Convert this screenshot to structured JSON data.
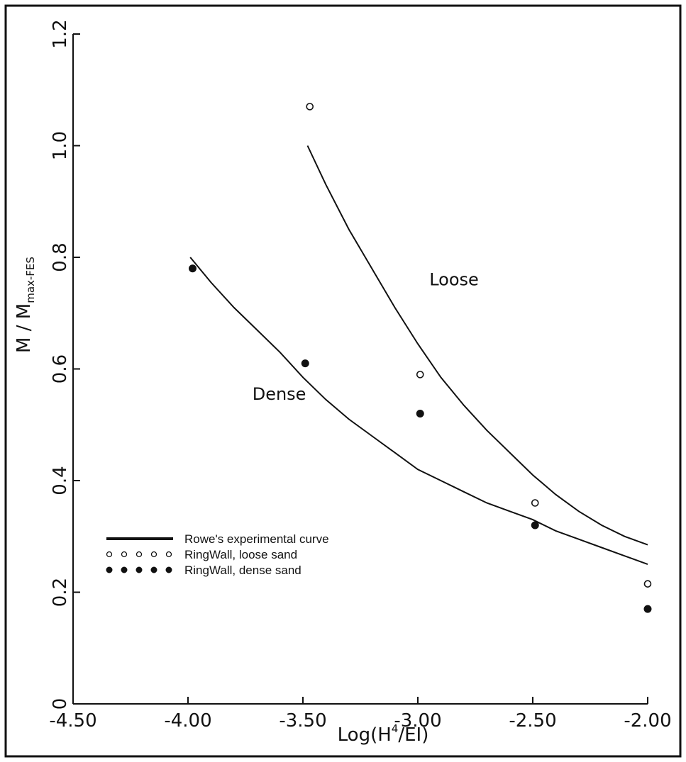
{
  "chart_data": {
    "type": "scatter",
    "title": "",
    "xlabel": "Log(H⁴/EI)",
    "ylabel": "M / Mmax-FES",
    "ylabel_parts": {
      "main": "M  /  M",
      "sub": "max-FES"
    },
    "xlabel_parts": {
      "pre": "Log(H",
      "sup": "4",
      "post": "/EI)"
    },
    "xlim": [
      -4.5,
      -2.0
    ],
    "ylim": [
      0,
      1.2
    ],
    "x_ticks": [
      -4.5,
      -4.0,
      -3.5,
      -3.0,
      -2.5,
      -2.0
    ],
    "x_tick_labels": [
      "-4.50",
      "-4.00",
      "-3.50",
      "-3.00",
      "-2.50",
      "-2.00"
    ],
    "y_ticks": [
      0,
      0.2,
      0.4,
      0.6,
      0.8,
      1.0,
      1.2
    ],
    "y_tick_labels": [
      "0",
      "0.2",
      "0.4",
      "0.6",
      "0.8",
      "1.0",
      "1.2"
    ],
    "grid": false,
    "legend_position": "lower-left",
    "annotations": [
      {
        "text": "Loose",
        "x": -2.95,
        "y": 0.75
      },
      {
        "text": "Dense",
        "x": -3.72,
        "y": 0.545
      }
    ],
    "series": [
      {
        "name": "Rowe's experimental curve",
        "kind": "curve",
        "marker": "line",
        "group": "Loose",
        "x": [
          -3.48,
          -3.4,
          -3.3,
          -3.2,
          -3.1,
          -3.0,
          -2.9,
          -2.8,
          -2.7,
          -2.6,
          -2.5,
          -2.4,
          -2.3,
          -2.2,
          -2.1,
          -2.0
        ],
        "y": [
          1.0,
          0.93,
          0.85,
          0.78,
          0.71,
          0.645,
          0.585,
          0.535,
          0.49,
          0.45,
          0.41,
          0.375,
          0.345,
          0.32,
          0.3,
          0.285
        ]
      },
      {
        "name": "Rowe's experimental curve",
        "kind": "curve",
        "marker": "line",
        "group": "Dense",
        "x": [
          -3.99,
          -3.9,
          -3.8,
          -3.7,
          -3.6,
          -3.5,
          -3.4,
          -3.3,
          -3.2,
          -3.1,
          -3.0,
          -2.9,
          -2.8,
          -2.7,
          -2.6,
          -2.5,
          -2.4,
          -2.3,
          -2.2,
          -2.1,
          -2.0
        ],
        "y": [
          0.8,
          0.755,
          0.71,
          0.67,
          0.63,
          0.585,
          0.545,
          0.51,
          0.48,
          0.45,
          0.42,
          0.4,
          0.38,
          0.36,
          0.345,
          0.33,
          0.31,
          0.295,
          0.28,
          0.265,
          0.25
        ]
      },
      {
        "name": "RingWall, loose sand",
        "kind": "points",
        "marker": "open-circle",
        "x": [
          -3.47,
          -2.99,
          -2.49,
          -2.0
        ],
        "y": [
          1.07,
          0.59,
          0.36,
          0.215
        ]
      },
      {
        "name": "RingWall, dense sand",
        "kind": "points",
        "marker": "filled-circle",
        "x": [
          -3.98,
          -3.49,
          -2.99,
          -2.49,
          -2.0
        ],
        "y": [
          0.78,
          0.61,
          0.52,
          0.32,
          0.17
        ]
      }
    ],
    "legend": [
      {
        "label": "Rowe's experimental curve",
        "marker": "line"
      },
      {
        "label": "RingWall, loose sand",
        "marker": "open-circle"
      },
      {
        "label": "RingWall, dense sand",
        "marker": "filled-circle"
      }
    ]
  }
}
